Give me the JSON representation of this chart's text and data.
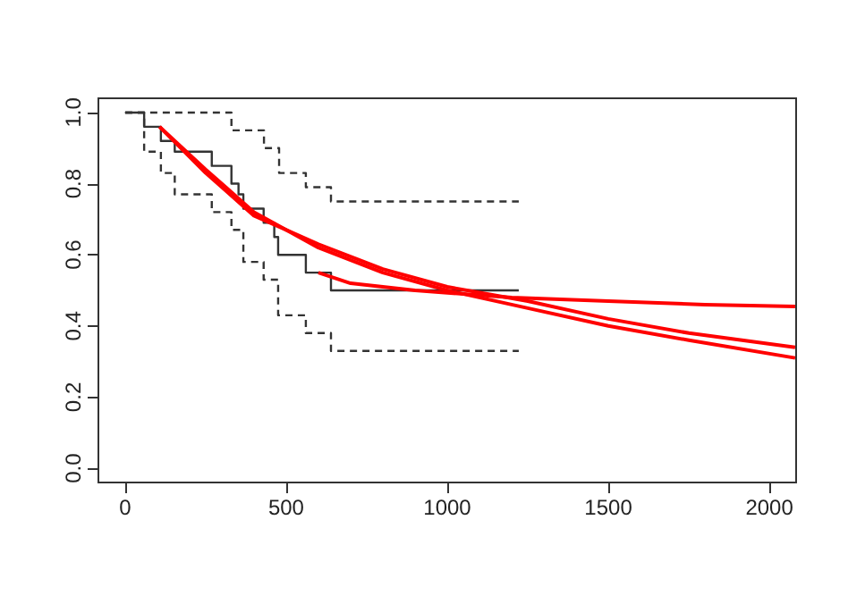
{
  "chart_data": {
    "type": "line",
    "xlim": [
      -83,
      2083
    ],
    "ylim": [
      -0.04,
      1.04
    ],
    "xticks": [
      0,
      500,
      1000,
      1500,
      2000
    ],
    "yticks": [
      {
        "value": 0,
        "label": "0.0"
      },
      0.2,
      0.4,
      0.6,
      0.8,
      {
        "value": 1,
        "label": "1.0"
      }
    ],
    "marker": "none",
    "series": [
      {
        "type": "step",
        "color": "#333333",
        "line_style": "solid",
        "x": [
          0,
          59,
          111,
          154,
          269,
          330,
          352,
          367,
          430,
          463,
          475,
          561,
          639,
          1222
        ],
        "values": [
          1.0,
          0.96,
          0.92,
          0.89,
          0.85,
          0.8,
          0.77,
          0.73,
          0.69,
          0.65,
          0.6,
          0.55,
          0.5,
          0.5
        ]
      },
      {
        "type": "step",
        "color": "#333333",
        "line_style": "dashed",
        "x": [
          0,
          330,
          431,
          478,
          561,
          639,
          1222
        ],
        "values": [
          1.0,
          0.95,
          0.9,
          0.83,
          0.79,
          0.75,
          0.75
        ]
      },
      {
        "type": "step",
        "color": "#333333",
        "line_style": "dashed",
        "x": [
          0,
          59,
          111,
          154,
          269,
          330,
          367,
          430,
          475,
          561,
          639,
          1222
        ],
        "values": [
          1.0,
          0.89,
          0.83,
          0.77,
          0.72,
          0.67,
          0.58,
          0.53,
          0.43,
          0.38,
          0.33,
          0.33
        ]
      },
      {
        "color": "#ff0000",
        "line_style": "solid",
        "x": [
          107,
          250,
          400,
          600,
          800,
          1000,
          1250,
          1500,
          1750,
          2080
        ],
        "values": [
          0.96,
          0.84,
          0.72,
          0.62,
          0.55,
          0.5,
          0.45,
          0.4,
          0.36,
          0.31
        ]
      },
      {
        "color": "#ff0000",
        "line_style": "solid",
        "x": [
          107,
          250,
          400,
          600,
          800,
          1000,
          1250,
          1500,
          1750,
          2080
        ],
        "values": [
          0.96,
          0.83,
          0.71,
          0.63,
          0.56,
          0.51,
          0.47,
          0.42,
          0.38,
          0.34
        ]
      },
      {
        "color": "#ff0000",
        "line_style": "solid",
        "x": [
          600,
          700,
          900,
          1200,
          1500,
          1800,
          2080
        ],
        "values": [
          0.55,
          0.52,
          0.5,
          0.48,
          0.47,
          0.46,
          0.455
        ]
      }
    ]
  }
}
